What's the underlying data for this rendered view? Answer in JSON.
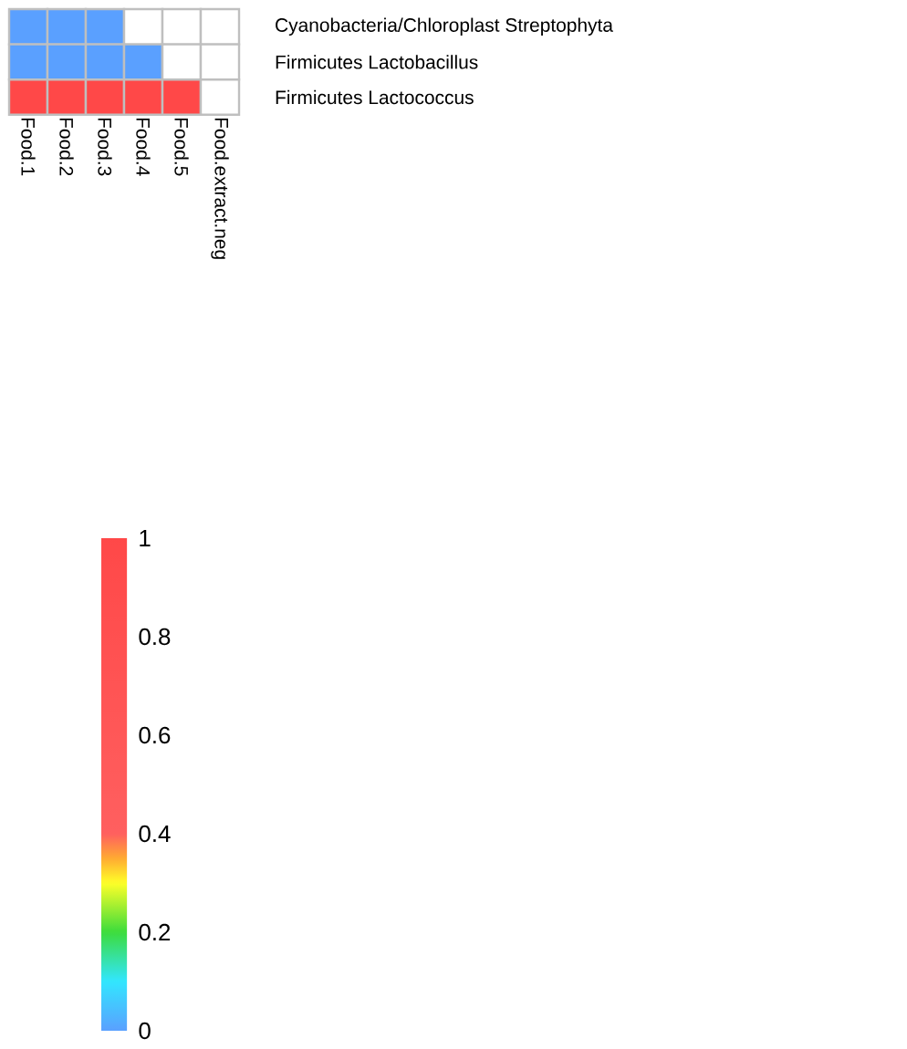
{
  "chart_data": {
    "type": "heatmap",
    "categories": [
      "Food.1",
      "Food.2",
      "Food.3",
      "Food.4",
      "Food.5",
      "Food.extract.neg"
    ],
    "y_categories": [
      "Cyanobacteria/Chloroplast  Streptophyta",
      "Firmicutes  Lactobacillus",
      "Firmicutes  Lactococcus"
    ],
    "cells": [
      [
        0,
        0,
        0,
        null,
        null,
        null
      ],
      [
        0,
        0,
        0,
        0,
        null,
        null
      ],
      [
        1,
        1,
        1,
        1,
        1,
        null
      ]
    ],
    "clim": [
      0,
      1
    ],
    "cticks": [
      0,
      0.2,
      0.4,
      0.6,
      0.8,
      1
    ]
  }
}
